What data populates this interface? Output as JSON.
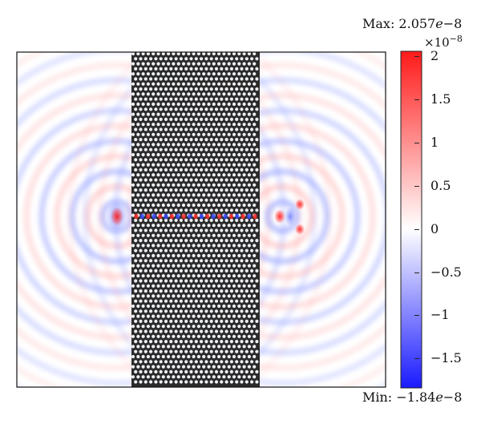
{
  "legend": {
    "max_label": "Max: 2.057e−8",
    "min_label": "Min: −1.84e−8",
    "scale_label": "×10−8",
    "max_value": 2.057,
    "min_value": -1.84,
    "ticks": [
      {
        "value": 2,
        "label": "2"
      },
      {
        "value": 1.5,
        "label": "1.5"
      },
      {
        "value": 1,
        "label": "1"
      },
      {
        "value": 0.5,
        "label": "0.5"
      },
      {
        "value": 0,
        "label": "0"
      },
      {
        "value": -0.5,
        "label": "−0.5"
      },
      {
        "value": -1,
        "label": "−1"
      },
      {
        "value": -1.5,
        "label": "−1.5"
      }
    ],
    "colors": {
      "max": "#ff1a1a",
      "mid": "#ffffff",
      "min": "#1a1aff"
    }
  },
  "field": {
    "slab_color": "#2b2b2b",
    "hole_color": "#eef0f4"
  }
}
